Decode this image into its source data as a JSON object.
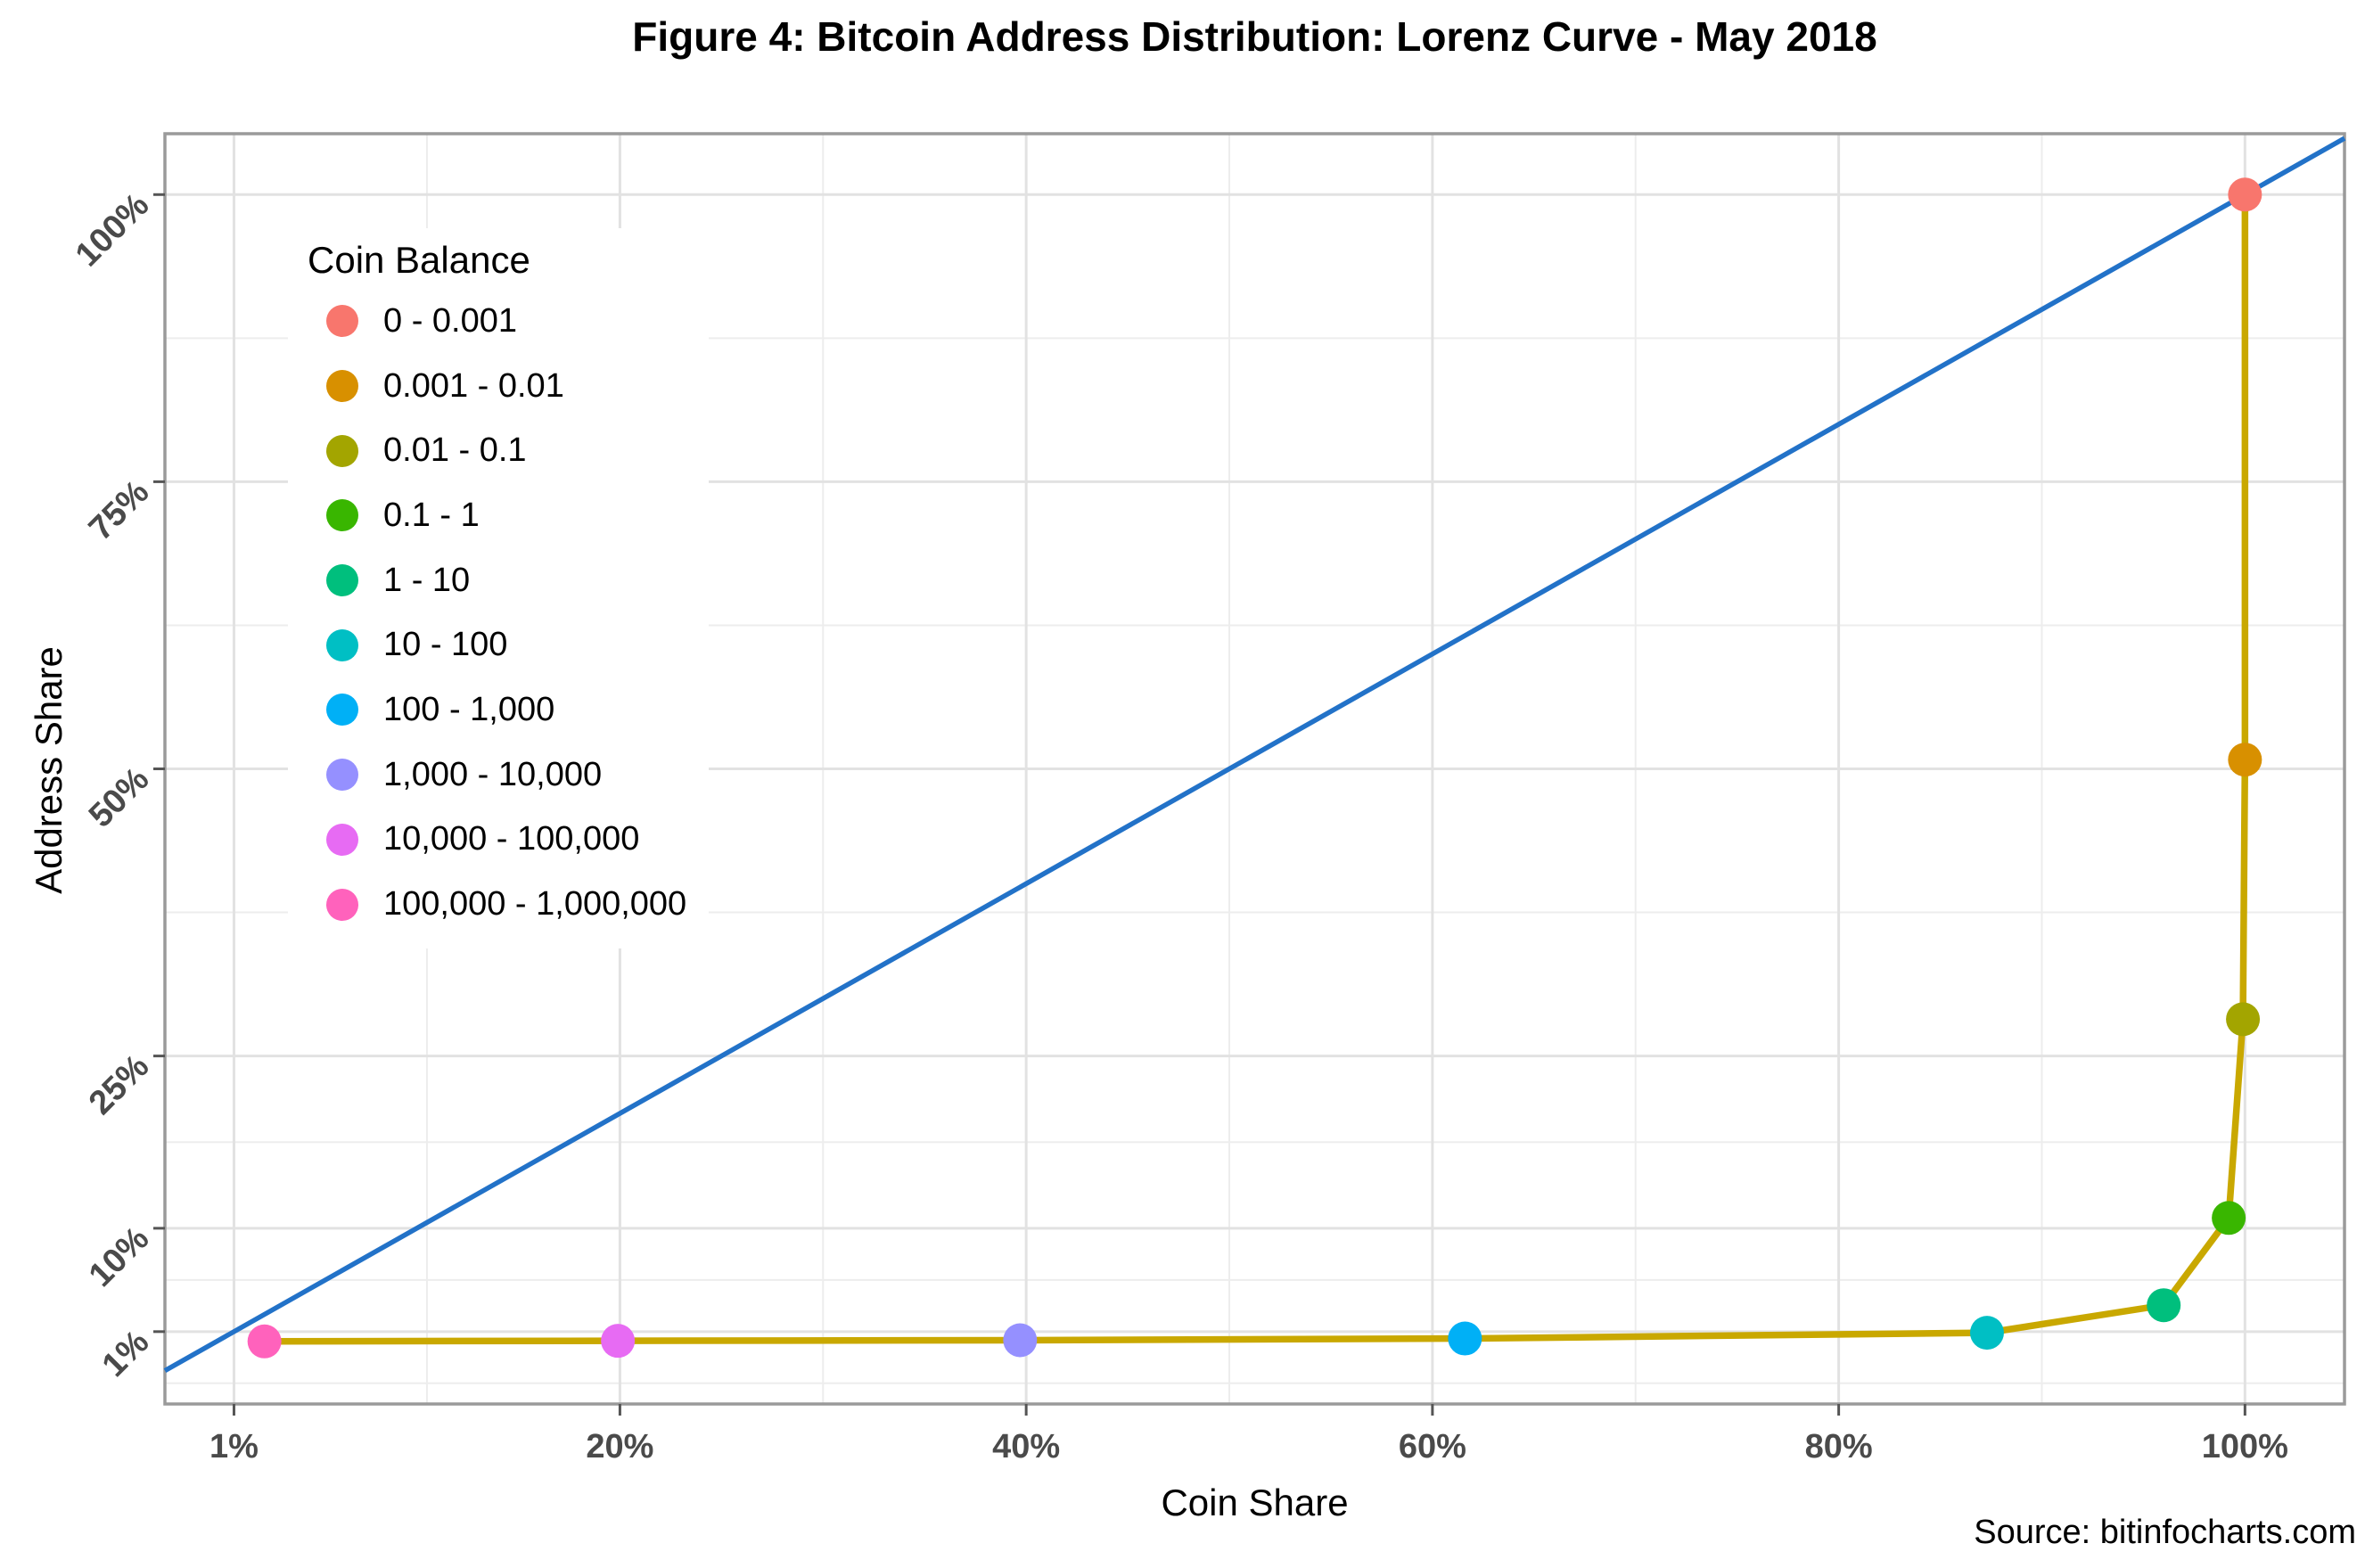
{
  "page": {
    "title": "Figure 4: Bitcoin Address Distribution: Lorenz Curve - May 2018",
    "source": "Source: bitinfocharts.com"
  },
  "legend": {
    "title": "Coin Balance",
    "items": [
      {
        "label": "0 - 0.001",
        "color": "#F8766D"
      },
      {
        "label": "0.001 - 0.01",
        "color": "#D89000"
      },
      {
        "label": "0.01 - 0.1",
        "color": "#A3A500"
      },
      {
        "label": "0.1 - 1",
        "color": "#39B600"
      },
      {
        "label": "1 - 10",
        "color": "#00BF7D"
      },
      {
        "label": "10 - 100",
        "color": "#00BFC4"
      },
      {
        "label": "100 - 1,000",
        "color": "#00B0F6"
      },
      {
        "label": "1,000 - 10,000",
        "color": "#9590FF"
      },
      {
        "label": "10,000 - 100,000",
        "color": "#E76BF3"
      },
      {
        "label": "100,000 - 1,000,000",
        "color": "#FF62BC"
      }
    ]
  },
  "chart_data": {
    "type": "line",
    "title": "Figure 4: Bitcoin Address Distribution: Lorenz Curve - May 2018",
    "xlabel": "Coin Share",
    "ylabel": "Address Share",
    "xlim": [
      -2.4,
      104.9
    ],
    "ylim": [
      -5.3,
      105.3
    ],
    "grid": "on",
    "legend_position": "inside-top-left",
    "legend_title": "Coin Balance",
    "x_ticks": [
      {
        "value": 1,
        "label": "1%"
      },
      {
        "value": 20,
        "label": "20%"
      },
      {
        "value": 40,
        "label": "40%"
      },
      {
        "value": 60,
        "label": "60%"
      },
      {
        "value": 80,
        "label": "80%"
      },
      {
        "value": 100,
        "label": "100%"
      }
    ],
    "y_ticks": [
      {
        "value": 1,
        "label": "1%"
      },
      {
        "value": 10,
        "label": "10%"
      },
      {
        "value": 25,
        "label": "25%"
      },
      {
        "value": 50,
        "label": "50%"
      },
      {
        "value": 75,
        "label": "75%"
      },
      {
        "value": 100,
        "label": "100%"
      }
    ],
    "x_minor_ticks": [
      10.5,
      30,
      50,
      70,
      90
    ],
    "y_minor_ticks": [
      -3.5,
      5.5,
      17.5,
      37.5,
      62.5,
      87.5
    ],
    "equality_line": {
      "color": "#2272C8",
      "x": [
        -2.4,
        104.9
      ],
      "y": [
        -2.4,
        104.9
      ]
    },
    "lorenz_curve": {
      "line_color": "#C9A800",
      "points": [
        {
          "label": "100,000 - 1,000,000",
          "color": "#FF62BC",
          "coin_share": 2.5,
          "address_share": 0.15
        },
        {
          "label": "10,000 - 100,000",
          "color": "#E76BF3",
          "coin_share": 19.9,
          "address_share": 0.2
        },
        {
          "label": "1,000 - 10,000",
          "color": "#9590FF",
          "coin_share": 39.7,
          "address_share": 0.25
        },
        {
          "label": "100 - 1,000",
          "color": "#00B0F6",
          "coin_share": 61.6,
          "address_share": 0.4
        },
        {
          "label": "10 - 100",
          "color": "#00BFC4",
          "coin_share": 87.3,
          "address_share": 0.9
        },
        {
          "label": "1 - 10",
          "color": "#00BF7D",
          "coin_share": 96.0,
          "address_share": 3.3
        },
        {
          "label": "0.1 - 1",
          "color": "#39B600",
          "coin_share": 99.2,
          "address_share": 10.9
        },
        {
          "label": "0.01 - 0.1",
          "color": "#A3A500",
          "coin_share": 99.9,
          "address_share": 28.2
        },
        {
          "label": "0.001 - 0.01",
          "color": "#D89000",
          "coin_share": 100,
          "address_share": 50.8
        },
        {
          "label": "0 - 0.001",
          "color": "#F8766D",
          "coin_share": 100,
          "address_share": 100
        }
      ]
    },
    "colors": {
      "grid_major": "#E2E2E2",
      "grid_minor": "#EDEDED",
      "panel_border": "#9A9A9A",
      "tick": "#555555",
      "tick_label": "#4A4A4A",
      "text": "#000000",
      "background": "#FFFFFF"
    }
  }
}
